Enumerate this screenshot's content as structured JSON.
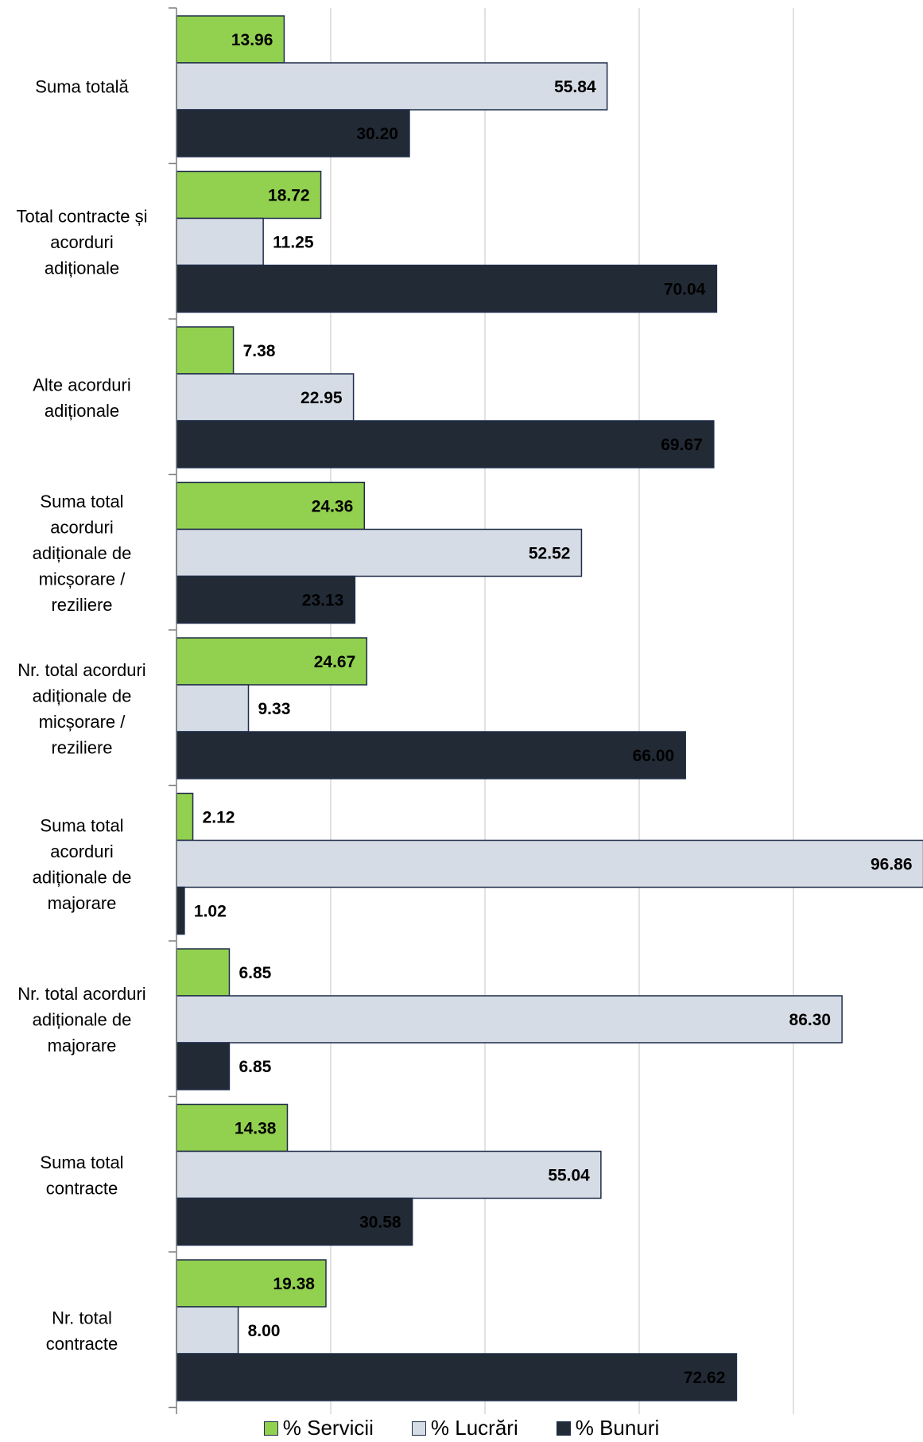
{
  "chart_data": {
    "type": "bar",
    "orientation": "horizontal",
    "categories": [
      "Suma totală",
      "Total contracte și acorduri adiționale",
      "Alte acorduri adiționale",
      "Suma total acorduri adiționale de micșorare / reziliere",
      "Nr. total acorduri adiționale de micșorare / reziliere",
      "Suma total acorduri adiționale de majorare",
      "Nr. total acorduri adiționale de majorare",
      "Suma total contracte",
      "Nr. total contracte"
    ],
    "category_lines": [
      [
        "Suma totală"
      ],
      [
        "Total contracte și",
        "acorduri",
        "adiționale"
      ],
      [
        "Alte acorduri",
        "adiționale"
      ],
      [
        "Suma total",
        "acorduri",
        "adiționale de",
        "micșorare /",
        "reziliere"
      ],
      [
        "Nr. total acorduri",
        "adiționale de",
        "micșorare /",
        "reziliere"
      ],
      [
        "Suma total",
        "acorduri",
        "adiționale de",
        "majorare"
      ],
      [
        "Nr. total acorduri",
        "adiționale de",
        "majorare"
      ],
      [
        "Suma total",
        "contracte"
      ],
      [
        "Nr. total",
        "contracte"
      ]
    ],
    "series": [
      {
        "name": "% Servicii",
        "color": "#92d050",
        "values": [
          13.96,
          18.72,
          7.38,
          24.36,
          24.67,
          2.12,
          6.85,
          14.38,
          19.38
        ],
        "labels": [
          "13.96",
          "18.72",
          "7.38",
          "24.36",
          "24.67",
          "2.12",
          "6.85",
          "14.38",
          "19.38"
        ]
      },
      {
        "name": "% Lucrări",
        "color": "#d6dce5",
        "values": [
          55.84,
          11.25,
          22.95,
          52.52,
          9.33,
          96.86,
          86.3,
          55.04,
          8.0
        ],
        "labels": [
          "55.84",
          "11.25",
          "22.95",
          "52.52",
          "9.33",
          "96.86",
          "86.30",
          "55.04",
          "8.00"
        ]
      },
      {
        "name": "% Bunuri",
        "color": "#222a35",
        "values": [
          30.2,
          70.04,
          69.67,
          23.13,
          66.0,
          1.02,
          6.85,
          30.58,
          72.62
        ],
        "labels": [
          "30.20",
          "70.04",
          "69.67",
          "23.13",
          "66.00",
          "1.02",
          "6.85",
          "30.58",
          "72.62"
        ]
      }
    ],
    "xlim": [
      0,
      100
    ],
    "grid": true,
    "legend_position": "bottom",
    "bar_outline_color": "#1f2d4a",
    "gridline_color": "#d9d9d9"
  }
}
